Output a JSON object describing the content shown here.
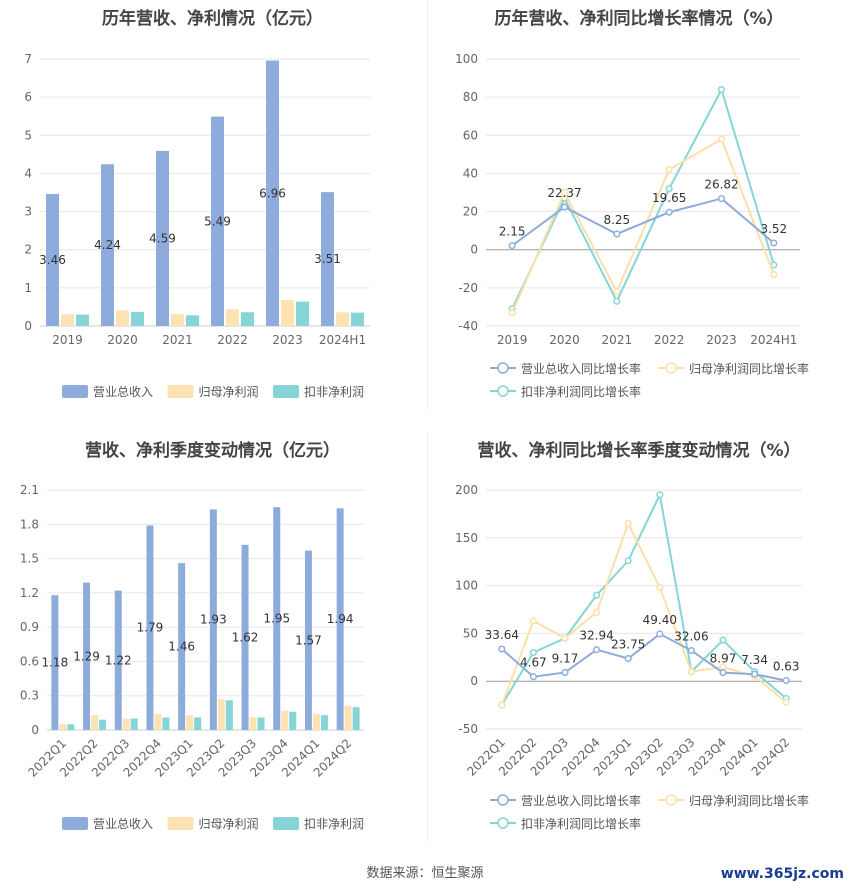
{
  "panels": {
    "annual_bar": {
      "title": "历年营收、净利情况（亿元）"
    },
    "annual_line": {
      "title": "历年营收、净利同比增长率情况（%）"
    },
    "quarter_bar": {
      "title": "营收、净利季度变动情况（亿元）"
    },
    "quarter_line": {
      "title": "营收、净利同比增长率季度变动情况（%）"
    }
  },
  "footer": {
    "source": "数据来源：恒生聚源"
  },
  "watermark": {
    "text": "www.365jz.com"
  },
  "colors": {
    "revenue": "#8eacdb",
    "net_profit": "#fde3b3",
    "deducted_profit": "#86d5d6",
    "revenue_line": "#8eacdb",
    "net_profit_line": "#fde0a8",
    "deducted_line": "#86d5d6"
  },
  "chart_data": [
    {
      "id": "annual_bar",
      "type": "bar",
      "title": "历年营收、净利情况（亿元）",
      "categories": [
        "2019",
        "2020",
        "2021",
        "2022",
        "2023",
        "2024H1"
      ],
      "ylim": [
        0,
        7
      ],
      "yticks": [
        0,
        1,
        2,
        3,
        4,
        5,
        6,
        7
      ],
      "series": [
        {
          "name": "营业总收入",
          "values": [
            3.46,
            4.24,
            4.59,
            5.49,
            6.96,
            3.51
          ],
          "labels": [
            "3.46",
            "4.24",
            "4.59",
            "5.49",
            "6.96",
            "3.51"
          ]
        },
        {
          "name": "归母净利润",
          "values": [
            0.31,
            0.41,
            0.31,
            0.44,
            0.68,
            0.36
          ]
        },
        {
          "name": "扣非净利润",
          "values": [
            0.3,
            0.37,
            0.28,
            0.36,
            0.64,
            0.35
          ]
        }
      ],
      "legend": "bottom"
    },
    {
      "id": "annual_line",
      "type": "line",
      "title": "历年营收、净利同比增长率情况（%）",
      "categories": [
        "2019",
        "2020",
        "2021",
        "2022",
        "2023",
        "2024H1"
      ],
      "ylim": [
        -40,
        100
      ],
      "yticks": [
        -40,
        -20,
        0,
        20,
        40,
        60,
        80,
        100
      ],
      "series": [
        {
          "name": "营业总收入同比增长率",
          "values": [
            2.15,
            22.37,
            8.25,
            19.65,
            26.82,
            3.52
          ],
          "labels": [
            "2.15",
            "22.37",
            "8.25",
            "19.65",
            "26.82",
            "3.52"
          ]
        },
        {
          "name": "归母净利润同比增长率",
          "values": [
            -33,
            30,
            -22,
            42,
            58,
            -13
          ]
        },
        {
          "name": "扣非净利润同比增长率",
          "values": [
            -31,
            27,
            -27,
            32,
            84,
            -8
          ]
        }
      ],
      "legend": "bottom"
    },
    {
      "id": "quarter_bar",
      "type": "bar",
      "title": "营收、净利季度变动情况（亿元）",
      "categories": [
        "2022Q1",
        "2022Q2",
        "2022Q3",
        "2022Q4",
        "2023Q1",
        "2023Q2",
        "2023Q3",
        "2023Q4",
        "2024Q1",
        "2024Q2"
      ],
      "ylim": [
        0,
        2.1
      ],
      "yticks": [
        0,
        0.3,
        0.6,
        0.9,
        1.2,
        1.5,
        1.8,
        2.1
      ],
      "series": [
        {
          "name": "营业总收入",
          "values": [
            1.18,
            1.29,
            1.22,
            1.79,
            1.46,
            1.93,
            1.62,
            1.95,
            1.57,
            1.94
          ],
          "labels": [
            "1.18",
            "1.29",
            "1.22",
            "1.79",
            "1.46",
            "1.93",
            "1.62",
            "1.95",
            "1.57",
            "1.94"
          ]
        },
        {
          "name": "归母净利润",
          "values": [
            0.05,
            0.13,
            0.1,
            0.14,
            0.13,
            0.27,
            0.11,
            0.17,
            0.14,
            0.21
          ]
        },
        {
          "name": "扣非净利润",
          "values": [
            0.05,
            0.09,
            0.1,
            0.11,
            0.11,
            0.26,
            0.11,
            0.16,
            0.13,
            0.2
          ]
        }
      ],
      "legend": "bottom"
    },
    {
      "id": "quarter_line",
      "type": "line",
      "title": "营收、净利同比增长率季度变动情况（%）",
      "categories": [
        "2022Q1",
        "2022Q2",
        "2022Q3",
        "2022Q4",
        "2023Q1",
        "2023Q2",
        "2023Q3",
        "2023Q4",
        "2024Q1",
        "2024Q2"
      ],
      "ylim": [
        -50,
        200
      ],
      "yticks": [
        -50,
        0,
        50,
        100,
        150,
        200
      ],
      "series": [
        {
          "name": "营业总收入同比增长率",
          "values": [
            33.64,
            4.67,
            9.17,
            32.94,
            23.75,
            49.4,
            32.06,
            8.97,
            7.34,
            0.63
          ],
          "labels": [
            "33.64",
            "4.67",
            "9.17",
            "32.94",
            "23.75",
            "49.40",
            "32.06",
            "8.97",
            "7.34",
            "0.63"
          ]
        },
        {
          "name": "归母净利润同比增长率",
          "values": [
            -25,
            63,
            45,
            72,
            165,
            98,
            10,
            15,
            5,
            -22
          ]
        },
        {
          "name": "扣非净利润同比增长率",
          "values": [
            -25,
            30,
            45,
            90,
            126,
            195,
            10,
            43,
            10,
            -18
          ]
        }
      ],
      "legend": "bottom"
    }
  ]
}
